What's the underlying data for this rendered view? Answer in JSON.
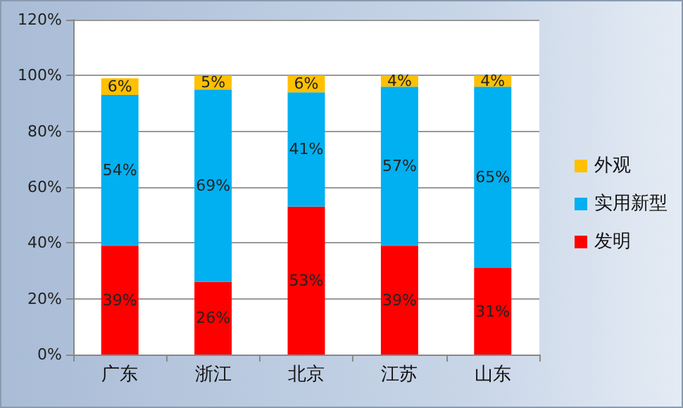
{
  "chart_data": {
    "type": "bar",
    "stacked": true,
    "categories": [
      "广东",
      "浙江",
      "北京",
      "江苏",
      "山东"
    ],
    "series": [
      {
        "name": "发明",
        "color": "#ff0000",
        "values": [
          39,
          26,
          53,
          39,
          31
        ],
        "value_labels": [
          "39%",
          "26%",
          "53%",
          "39%",
          "31%"
        ]
      },
      {
        "name": "实用新型",
        "color": "#00b0f0",
        "values": [
          54,
          69,
          41,
          57,
          65
        ],
        "value_labels": [
          "54%",
          "69%",
          "41%",
          "57%",
          "65%"
        ]
      },
      {
        "name": "外观",
        "color": "#ffc000",
        "values": [
          6,
          5,
          6,
          4,
          4
        ],
        "value_labels": [
          "6%",
          "5%",
          "6%",
          "4%",
          "4%"
        ]
      }
    ],
    "ylim": [
      0,
      120
    ],
    "yticks": [
      {
        "value": 0,
        "label": "0%"
      },
      {
        "value": 20,
        "label": "20%"
      },
      {
        "value": 40,
        "label": "40%"
      },
      {
        "value": 60,
        "label": "60%"
      },
      {
        "value": 80,
        "label": "80%"
      },
      {
        "value": 100,
        "label": "100%"
      },
      {
        "value": 120,
        "label": "120%"
      }
    ],
    "grid": "y",
    "legend": "right"
  }
}
